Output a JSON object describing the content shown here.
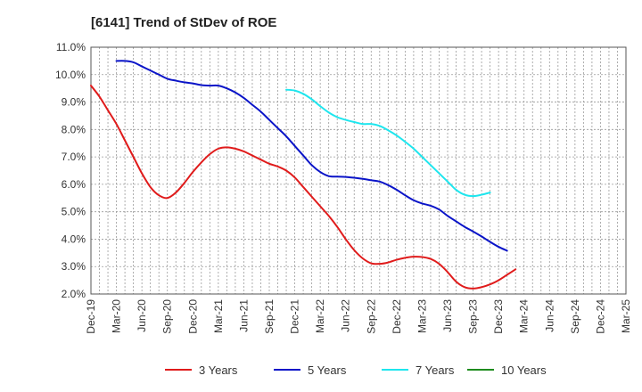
{
  "chart_data": {
    "type": "line",
    "title": "[6141]  Trend of StDev of ROE",
    "xlabel": "",
    "ylabel": "",
    "x_labels": [
      "Dec-19",
      "Mar-20",
      "Jun-20",
      "Sep-20",
      "Dec-20",
      "Mar-21",
      "Jun-21",
      "Sep-21",
      "Dec-21",
      "Mar-22",
      "Jun-22",
      "Sep-22",
      "Dec-22",
      "Mar-23",
      "Jun-23",
      "Sep-23",
      "Dec-23",
      "Mar-24",
      "Jun-24",
      "Sep-24",
      "Dec-24",
      "Mar-25"
    ],
    "ylim": [
      2.0,
      11.0
    ],
    "y_ticks": [
      2.0,
      3.0,
      4.0,
      5.0,
      6.0,
      7.0,
      8.0,
      9.0,
      10.0,
      11.0
    ],
    "y_tick_labels": [
      "2.0%",
      "3.0%",
      "4.0%",
      "5.0%",
      "6.0%",
      "7.0%",
      "8.0%",
      "9.0%",
      "10.0%",
      "11.0%"
    ],
    "grid": true,
    "legend_position": "bottom",
    "series": [
      {
        "name": "3 Years",
        "color": "#e01b1b",
        "start_index": 0,
        "values": [
          9.6,
          9.2,
          8.7,
          8.2,
          7.6,
          7.0,
          6.4,
          5.9,
          5.6,
          5.5,
          5.7,
          6.05,
          6.45,
          6.8,
          7.1,
          7.3,
          7.35,
          7.3,
          7.2,
          7.05,
          6.9,
          6.75,
          6.65,
          6.5,
          6.25,
          5.9,
          5.55,
          5.2,
          4.85,
          4.45,
          4.0,
          3.6,
          3.3,
          3.12,
          3.1,
          3.15,
          3.25,
          3.32,
          3.36,
          3.35,
          3.28,
          3.1,
          2.8,
          2.45,
          2.25,
          2.2,
          2.25,
          2.35,
          2.5,
          2.7,
          2.9
        ]
      },
      {
        "name": "5 Years",
        "color": "#0a14c8",
        "start_index": 3,
        "values": [
          10.5,
          10.5,
          10.45,
          10.3,
          10.15,
          10.0,
          9.85,
          9.78,
          9.72,
          9.68,
          9.62,
          9.6,
          9.6,
          9.5,
          9.35,
          9.15,
          8.9,
          8.65,
          8.35,
          8.05,
          7.75,
          7.4,
          7.05,
          6.7,
          6.45,
          6.3,
          6.28,
          6.27,
          6.24,
          6.2,
          6.15,
          6.1,
          5.97,
          5.8,
          5.6,
          5.42,
          5.3,
          5.22,
          5.08,
          4.85,
          4.65,
          4.45,
          4.28,
          4.1,
          3.9,
          3.72,
          3.58
        ]
      },
      {
        "name": "7 Years",
        "color": "#1ee6ee",
        "start_index": 23,
        "values": [
          9.45,
          9.42,
          9.3,
          9.1,
          8.85,
          8.62,
          8.45,
          8.35,
          8.27,
          8.2,
          8.2,
          8.13,
          7.97,
          7.78,
          7.55,
          7.3,
          7.0,
          6.7,
          6.4,
          6.1,
          5.8,
          5.62,
          5.57,
          5.62,
          5.7
        ]
      },
      {
        "name": "10 Years",
        "color": "#1e8c1e",
        "start_index": 0,
        "values": []
      }
    ]
  }
}
